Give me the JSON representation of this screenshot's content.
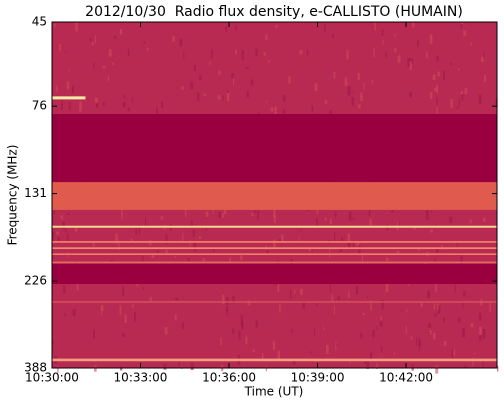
{
  "chart_data": {
    "type": "spectrogram",
    "title": "2012/10/30  Radio flux density, e-CALLISTO (HUMAIN)",
    "x_label": "Time (UT)",
    "y_label": "Frequency (MHz)",
    "background": "#b82a52",
    "xlim": [
      37800,
      38705
    ],
    "xticks": [
      {
        "value": 37800,
        "label": "10:30:00"
      },
      {
        "value": 37980,
        "label": "10:33:00"
      },
      {
        "value": 38160,
        "label": "10:36:00"
      },
      {
        "value": 38340,
        "label": "10:39:00"
      },
      {
        "value": 38520,
        "label": "10:42:00"
      }
    ],
    "ylim": [
      45,
      388
    ],
    "y_log": true,
    "y_inverted": true,
    "yticks": [
      45,
      76,
      131,
      226,
      388
    ],
    "bands": [
      {
        "from": 79.8,
        "to": 121.9,
        "color": "#9a003f"
      },
      {
        "from": 122,
        "to": 145,
        "color": "#e05a4e"
      },
      {
        "from": 160,
        "to": 162,
        "color": "#f5d890"
      },
      {
        "from": 176,
        "to": 178,
        "color": "#f07a66"
      },
      {
        "from": 183,
        "to": 185,
        "color": "#f08a70"
      },
      {
        "from": 190,
        "to": 192,
        "color": "#f07a66"
      },
      {
        "from": 200,
        "to": 202,
        "color": "#e86a5e"
      },
      {
        "from": 203,
        "to": 230,
        "color": "#9a003f"
      },
      {
        "from": 256,
        "to": 258,
        "color": "#d8505a"
      },
      {
        "from": 366,
        "to": 372,
        "color": "#f0a080"
      }
    ],
    "segments": [
      {
        "freq": 72.2,
        "x": [
          37800,
          37868
        ],
        "color": "#faeaa8"
      }
    ]
  }
}
